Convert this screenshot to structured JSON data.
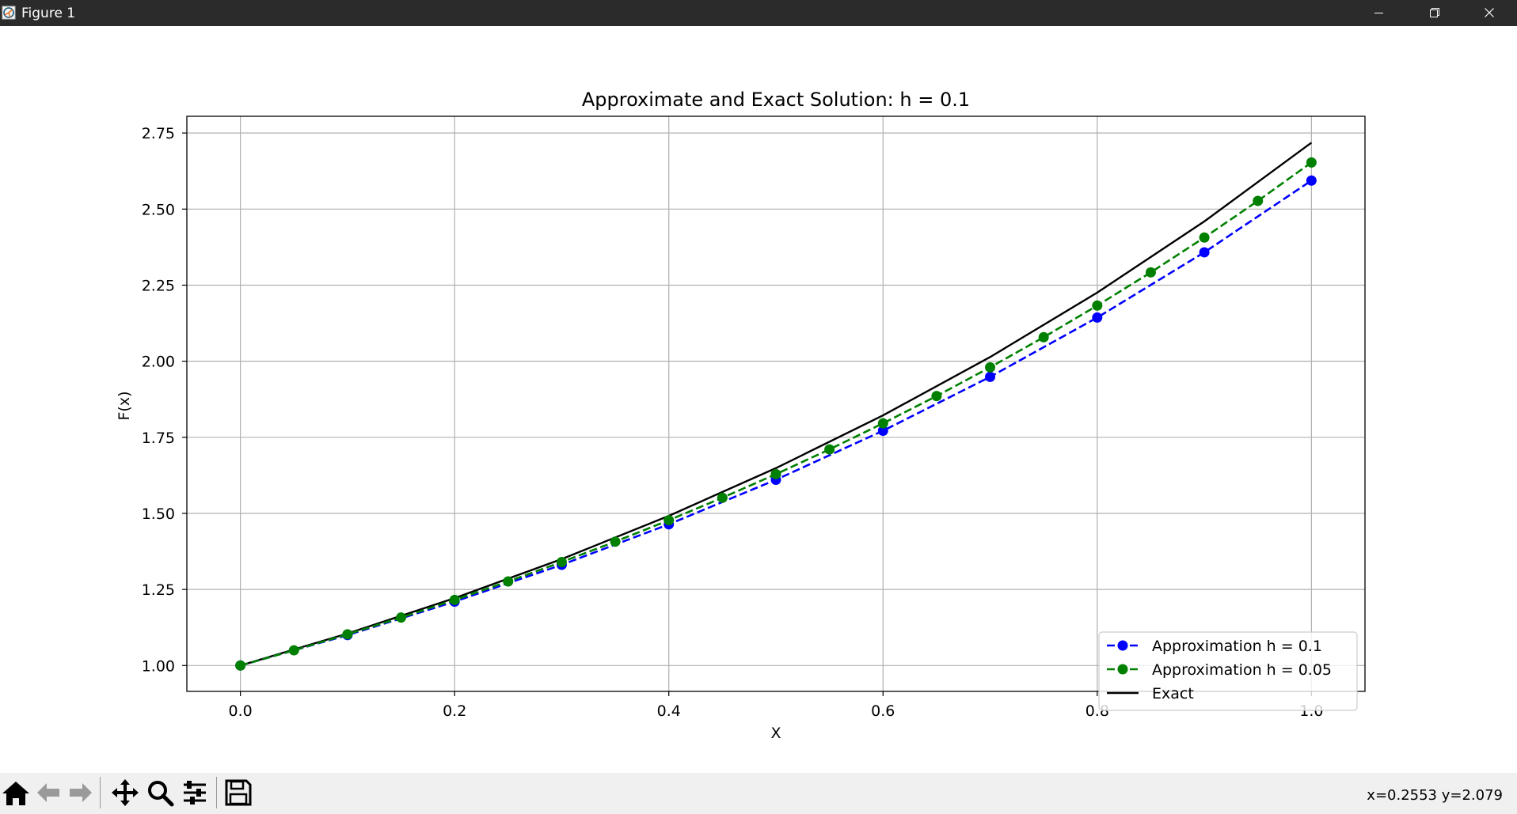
{
  "window": {
    "title": "Figure 1",
    "icons": {
      "app": "matplotlib-figure-icon",
      "minimize": "minimize-icon",
      "maximize": "restore-icon",
      "close": "close-icon"
    }
  },
  "chart_data": {
    "type": "line",
    "title": "Approximate and Exact Solution: h = 0.1",
    "xlabel": "X",
    "ylabel": "F(x)",
    "xlim": [
      -0.05,
      1.05
    ],
    "ylim": [
      0.915,
      2.805
    ],
    "xticks": [
      "0.0",
      "0.2",
      "0.4",
      "0.6",
      "0.8",
      "1.0"
    ],
    "yticks": [
      "1.00",
      "1.25",
      "1.50",
      "1.75",
      "2.00",
      "2.25",
      "2.50",
      "2.75"
    ],
    "grid": true,
    "legend_position": "lower-right",
    "series": [
      {
        "name": "Approximation h = 0.1",
        "color": "#0000ff",
        "style": "dashed-with-markers",
        "x": [
          0.0,
          0.1,
          0.2,
          0.3,
          0.4,
          0.5,
          0.6,
          0.7,
          0.8,
          0.9,
          1.0
        ],
        "y": [
          1.0,
          1.1,
          1.21,
          1.331,
          1.4641,
          1.61051,
          1.771561,
          1.948717,
          2.143589,
          2.357948,
          2.593742
        ]
      },
      {
        "name": "Approximation h = 0.05",
        "color": "#008000",
        "style": "dashed-with-markers",
        "x": [
          0.0,
          0.05,
          0.1,
          0.15,
          0.2,
          0.25,
          0.3,
          0.35,
          0.4,
          0.45,
          0.5,
          0.55,
          0.6,
          0.65,
          0.7,
          0.75,
          0.8,
          0.85,
          0.9,
          0.95,
          1.0
        ],
        "y": [
          1.0,
          1.05,
          1.1025,
          1.157625,
          1.215506,
          1.276282,
          1.340096,
          1.4071,
          1.477455,
          1.551328,
          1.628895,
          1.710339,
          1.795856,
          1.885649,
          1.979932,
          2.078928,
          2.182875,
          2.292018,
          2.406619,
          2.52695,
          2.653298
        ]
      },
      {
        "name": "Exact",
        "color": "#000000",
        "style": "solid",
        "x": [
          0.0,
          0.1,
          0.2,
          0.3,
          0.4,
          0.5,
          0.6,
          0.7,
          0.8,
          0.9,
          1.0
        ],
        "y": [
          1.0,
          1.105171,
          1.221403,
          1.349859,
          1.491825,
          1.648721,
          1.822119,
          2.013753,
          2.225541,
          2.459603,
          2.718282
        ]
      }
    ]
  },
  "toolbar": {
    "buttons": [
      {
        "name": "home-button",
        "icon": "home-icon"
      },
      {
        "name": "back-button",
        "icon": "arrow-left-icon"
      },
      {
        "name": "forward-button",
        "icon": "arrow-right-icon"
      },
      {
        "name": "pan-button",
        "icon": "move-icon"
      },
      {
        "name": "zoom-button",
        "icon": "magnifier-icon"
      },
      {
        "name": "configure-subplots-button",
        "icon": "sliders-icon"
      },
      {
        "name": "save-button",
        "icon": "floppy-disk-icon"
      }
    ],
    "coordinates": "x=0.2553 y=2.079"
  }
}
